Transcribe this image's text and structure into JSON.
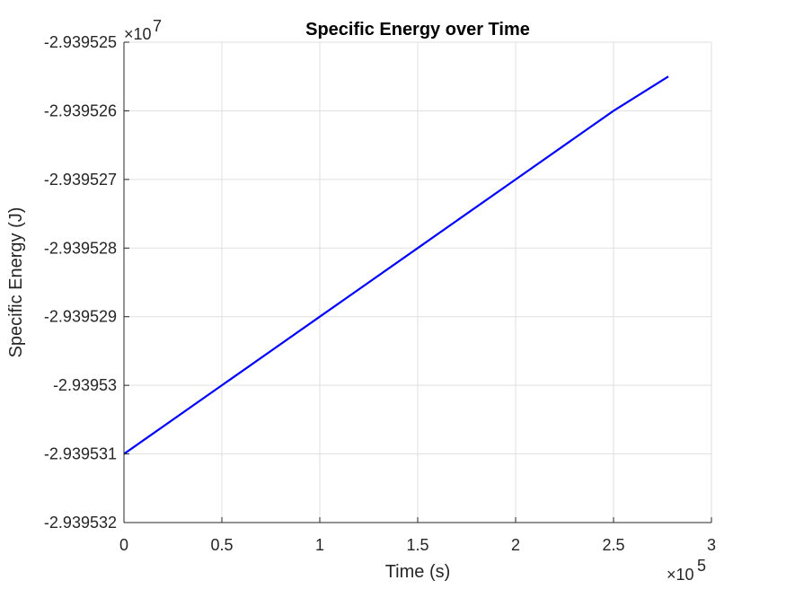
{
  "chart_data": {
    "type": "line",
    "title": "Specific Energy over Time",
    "xlabel": "Time (s)",
    "ylabel": "Specific Energy (J)",
    "x_multiplier": {
      "base": "×10",
      "exponent": "5"
    },
    "y_multiplier": {
      "base": "×10",
      "exponent": "7"
    },
    "xlim": [
      0,
      3
    ],
    "ylim": [
      -2.939532,
      -2.939525
    ],
    "x_ticks": [
      {
        "value": 0,
        "label": "0"
      },
      {
        "value": 0.5,
        "label": "0.5"
      },
      {
        "value": 1,
        "label": "1"
      },
      {
        "value": 1.5,
        "label": "1.5"
      },
      {
        "value": 2,
        "label": "2"
      },
      {
        "value": 2.5,
        "label": "2.5"
      },
      {
        "value": 3,
        "label": "3"
      }
    ],
    "y_ticks": [
      {
        "value": -2.939525,
        "label": "-2.939525"
      },
      {
        "value": -2.939526,
        "label": "-2.939526"
      },
      {
        "value": -2.939527,
        "label": "-2.939527"
      },
      {
        "value": -2.939528,
        "label": "-2.939528"
      },
      {
        "value": -2.939529,
        "label": "-2.939529"
      },
      {
        "value": -2.93953,
        "label": "-2.93953"
      },
      {
        "value": -2.939531,
        "label": "-2.939531"
      },
      {
        "value": -2.939532,
        "label": "-2.939532"
      }
    ],
    "grid": true,
    "series": [
      {
        "color": "#0000ff",
        "x": [
          0,
          0.5,
          1,
          1.5,
          2,
          2.5,
          2.78
        ],
        "y": [
          -2.939531,
          -2.93953,
          -2.939529,
          -2.939528,
          -2.939527,
          -2.939526,
          -2.9395255
        ]
      }
    ]
  }
}
